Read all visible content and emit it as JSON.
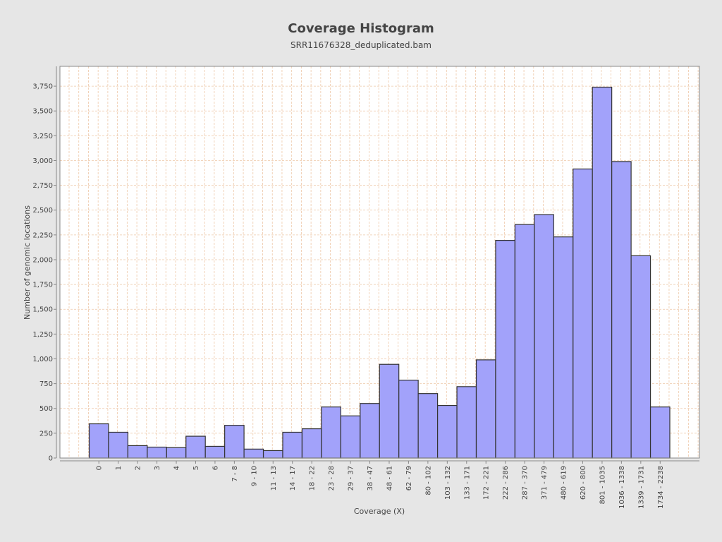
{
  "chart_data": {
    "type": "bar",
    "title": "Coverage Histogram",
    "subtitle": "SRR11676328_deduplicated.bam",
    "xlabel": "Coverage (X)",
    "ylabel": "Number of genomic locations",
    "ylim": [
      0,
      3950
    ],
    "yticks": [
      0,
      250,
      500,
      750,
      1000,
      1250,
      1500,
      1750,
      2000,
      2250,
      2500,
      2750,
      3000,
      3250,
      3500,
      3750
    ],
    "ytick_labels": [
      "0",
      "250",
      "500",
      "750",
      "1,000",
      "1,250",
      "1,500",
      "1,750",
      "2,000",
      "2,250",
      "2,500",
      "2,750",
      "3,000",
      "3,250",
      "3,500",
      "3,750"
    ],
    "categories": [
      "0",
      "1",
      "2",
      "3",
      "4",
      "5",
      "6",
      "7 - 8",
      "9 - 10",
      "11 - 13",
      "14 - 17",
      "18 - 22",
      "23 - 28",
      "29 - 37",
      "38 - 47",
      "48 - 61",
      "62 - 79",
      "80 - 102",
      "103 - 132",
      "133 - 171",
      "172 - 221",
      "222 - 286",
      "287 - 370",
      "371 - 479",
      "480 - 619",
      "620 - 800",
      "801 - 1035",
      "1036 - 1338",
      "1339 - 1731",
      "1734 - 2238"
    ],
    "values": [
      345,
      260,
      125,
      110,
      105,
      220,
      118,
      330,
      90,
      75,
      260,
      295,
      515,
      425,
      550,
      945,
      785,
      650,
      530,
      720,
      990,
      2195,
      2355,
      2455,
      2230,
      2915,
      3740,
      2990,
      2040,
      515
    ],
    "grid": true,
    "legend": "none",
    "colors": {
      "background": "#e6e6e6",
      "plot_background": "#ffffff",
      "bar_fill": "#a2a2fa",
      "bar_stroke": "#333333",
      "grid": "#eec8a8",
      "axis": "#888888",
      "text": "#444444"
    }
  }
}
